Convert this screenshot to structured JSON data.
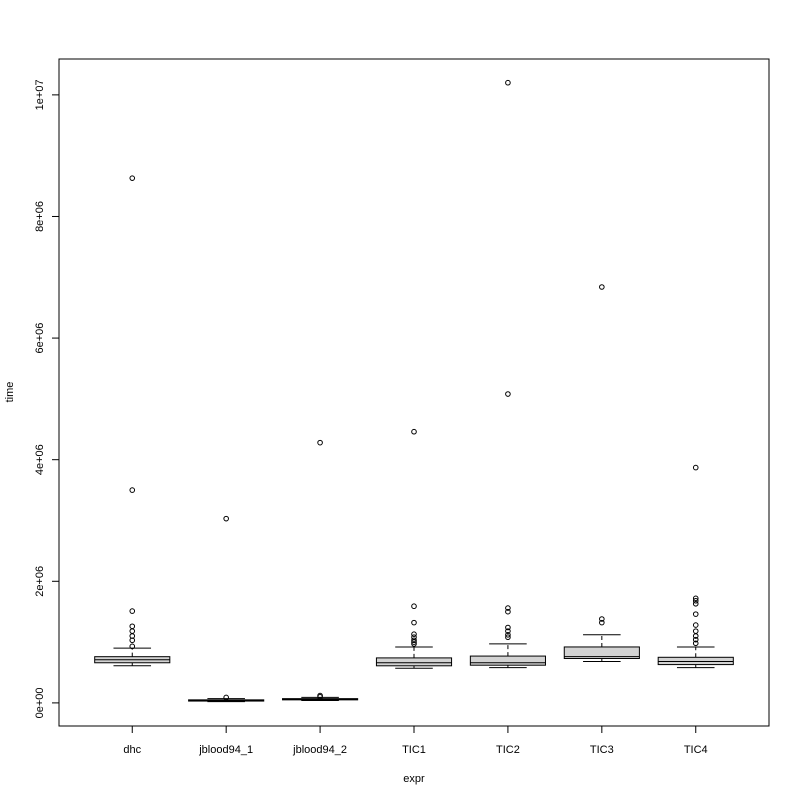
{
  "chart_data": {
    "type": "box",
    "x_label": "expr",
    "y_label": "time",
    "categories": [
      "dhc",
      "jblood94_1",
      "jblood94_2",
      "TIC1",
      "TIC2",
      "TIC3",
      "TIC4"
    ],
    "color": "#d3d3d3",
    "boxes": [
      {
        "min": 610000,
        "q1": 660000,
        "median": 710000,
        "q3": 760000,
        "max": 900000,
        "outliers": [
          8630000,
          3500000,
          1510000,
          1260000,
          1180000,
          1100000,
          1030000,
          930000
        ]
      },
      {
        "min": 20000,
        "q1": 30000,
        "median": 40000,
        "q3": 50000,
        "max": 70000,
        "outliers": [
          3030000,
          90000
        ]
      },
      {
        "min": 40000,
        "q1": 50000,
        "median": 60000,
        "q3": 70000,
        "max": 90000,
        "outliers": [
          4280000,
          120000,
          100000
        ]
      },
      {
        "min": 570000,
        "q1": 610000,
        "median": 660000,
        "q3": 740000,
        "max": 920000,
        "outliers": [
          4460000,
          1590000,
          1320000,
          1130000,
          1080000,
          1030000,
          1000000,
          970000
        ]
      },
      {
        "min": 580000,
        "q1": 620000,
        "median": 660000,
        "q3": 770000,
        "max": 970000,
        "outliers": [
          10200000,
          5080000,
          1560000,
          1500000,
          1240000,
          1180000,
          1120000,
          1080000
        ]
      },
      {
        "min": 680000,
        "q1": 730000,
        "median": 760000,
        "q3": 920000,
        "max": 1120000,
        "outliers": [
          6840000,
          1380000,
          1320000
        ]
      },
      {
        "min": 580000,
        "q1": 630000,
        "median": 680000,
        "q3": 750000,
        "max": 920000,
        "outliers": [
          3870000,
          1720000,
          1680000,
          1630000,
          1460000,
          1280000,
          1180000,
          1100000,
          1040000,
          980000
        ]
      }
    ],
    "ylim": [
      -380000,
      10590000
    ],
    "yticks": [
      {
        "value": 0,
        "label": "0e+00"
      },
      {
        "value": 2000000,
        "label": "2e+06"
      },
      {
        "value": 4000000,
        "label": "4e+06"
      },
      {
        "value": 6000000,
        "label": "6e+06"
      },
      {
        "value": 8000000,
        "label": "8e+06"
      },
      {
        "value": 10000000,
        "label": "1e+07"
      }
    ]
  }
}
